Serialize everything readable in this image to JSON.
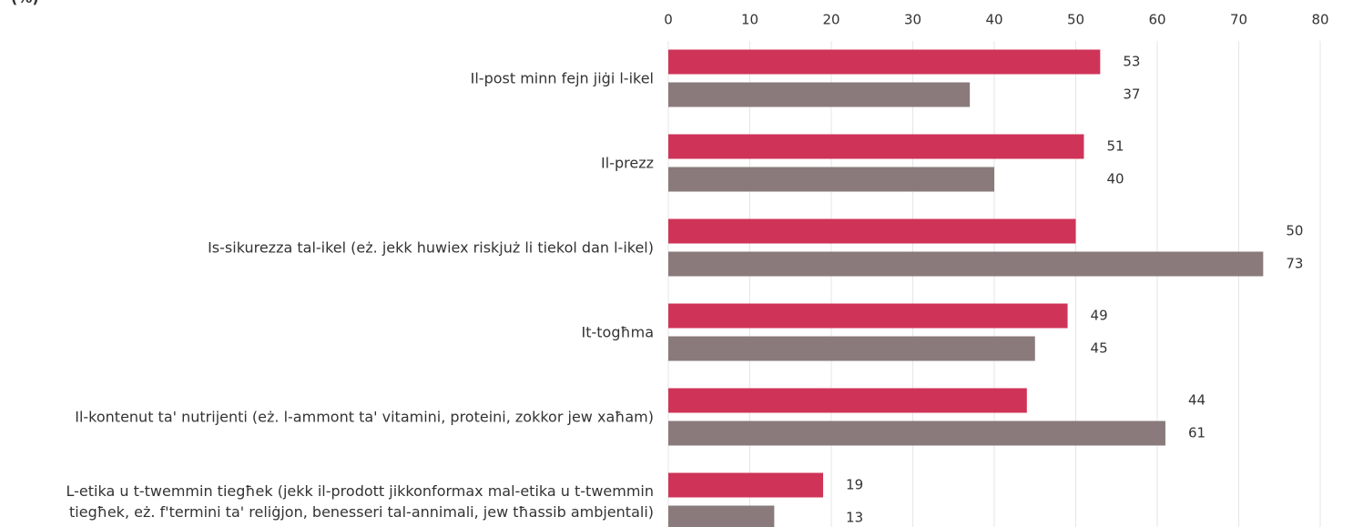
{
  "chart_data": {
    "type": "hbar-grouped",
    "subtitle": "(%)",
    "categories": [
      "Il-post minn fejn jiġi l-ikel",
      "Il-prezz",
      "Is-sikurezza tal-ikel (eż. jekk huwiex riskjuż li tiekol dan l-ikel)",
      "It-togħma",
      "Il-kontenut ta' nutrijenti (eż. l-ammont ta' vitamini, proteini, zokkor jew xaħam)",
      "L-etika u t-twemmin tiegħek (jekk il-prodott jikkonformax mal-etika u t-twemmin\ntiegħek, eż. f'termini ta' reliġjon, benesseri tal-annimali, jew tħassib ambjentali)"
    ],
    "series": [
      {
        "color": "#cf3458",
        "values": [
          53,
          51,
          50,
          49,
          44,
          19
        ]
      },
      {
        "color": "#8a7a7b",
        "values": [
          37,
          40,
          73,
          45,
          61,
          13
        ]
      }
    ],
    "xlim": [
      0,
      80
    ],
    "xticks": [
      0,
      10,
      20,
      30,
      40,
      50,
      60,
      70,
      80
    ],
    "grid": true
  }
}
